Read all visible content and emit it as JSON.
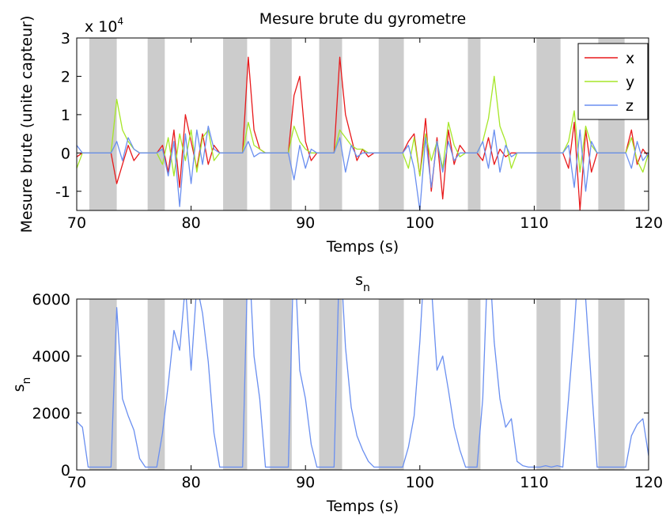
{
  "chart_data": [
    {
      "type": "line",
      "title": "Mesure brute du gyrometre",
      "x_label": "Temps (s)",
      "y_label": "Mesure brute (unite capteur)",
      "y_scale_label": "x 10",
      "y_scale_exponent": "4",
      "xlim": [
        70,
        120
      ],
      "xticks": [
        70,
        80,
        90,
        100,
        110,
        120
      ],
      "ylim": [
        -1.5,
        3
      ],
      "yticks": [
        -1,
        0,
        1,
        2,
        3
      ],
      "legend": "upper right",
      "shade_color": "#cccccc",
      "shaded_regions": [
        [
          71.1,
          73.5
        ],
        [
          76.2,
          77.7
        ],
        [
          82.8,
          84.9
        ],
        [
          86.9,
          88.8
        ],
        [
          91.2,
          93.2
        ],
        [
          96.4,
          98.6
        ],
        [
          104.2,
          105.3
        ],
        [
          110.2,
          112.3
        ],
        [
          115.6,
          117.9
        ]
      ],
      "x": [
        70,
        70.5,
        71,
        71.5,
        72,
        72.5,
        73,
        73.5,
        74,
        74.5,
        75,
        75.5,
        76,
        76.5,
        77,
        77.5,
        78,
        78.5,
        79,
        79.5,
        80,
        80.5,
        81,
        81.5,
        82,
        82.5,
        83,
        83.5,
        84,
        84.5,
        85,
        85.5,
        86,
        86.5,
        87,
        87.5,
        88,
        88.5,
        89,
        89.5,
        90,
        90.5,
        91,
        91.5,
        92,
        92.5,
        93,
        93.5,
        94,
        94.5,
        95,
        95.5,
        96,
        96.5,
        97,
        97.5,
        98,
        98.5,
        99,
        99.5,
        100,
        100.5,
        101,
        101.5,
        102,
        102.5,
        103,
        103.5,
        104,
        104.5,
        105,
        105.5,
        106,
        106.5,
        107,
        107.5,
        108,
        108.5,
        109,
        109.5,
        110,
        110.5,
        111,
        111.5,
        112,
        112.5,
        113,
        113.5,
        114,
        114.5,
        115,
        115.5,
        116,
        116.5,
        117,
        117.5,
        118,
        118.5,
        119,
        119.5,
        120
      ],
      "series": [
        {
          "name": "x",
          "color": "#e8191b",
          "values": [
            -0.1,
            0,
            0,
            0,
            0,
            0,
            0,
            -0.8,
            -0.3,
            0.2,
            -0.2,
            0,
            0,
            0,
            0,
            0.2,
            -0.5,
            0.6,
            -0.9,
            1.0,
            0.3,
            -0.4,
            0.5,
            -0.3,
            0.2,
            0,
            0,
            0,
            0,
            0,
            2.5,
            0.6,
            0.1,
            0,
            0,
            0,
            0,
            0,
            1.5,
            2.0,
            0.3,
            -0.2,
            0,
            0,
            0,
            0,
            2.5,
            1.0,
            0.4,
            -0.2,
            0.1,
            -0.1,
            0,
            0,
            0,
            0,
            0,
            0,
            0.3,
            0.5,
            -0.6,
            0.9,
            -1.0,
            0.4,
            -1.2,
            0.6,
            -0.3,
            0.2,
            0,
            0,
            0,
            -0.2,
            0.4,
            -0.3,
            0.1,
            -0.1,
            0,
            0,
            0,
            0,
            0,
            0,
            0,
            0,
            0,
            0,
            -0.4,
            0.8,
            -1.5,
            0.6,
            -0.5,
            0,
            0,
            0,
            0,
            0,
            0,
            0.6,
            -0.3,
            0.1,
            -0.1
          ]
        },
        {
          "name": "y",
          "color": "#a6e628",
          "values": [
            -0.4,
            0,
            0,
            0,
            0,
            0,
            0,
            1.4,
            0.6,
            0.3,
            0.1,
            0,
            0,
            0,
            0,
            -0.3,
            0.4,
            -0.6,
            0.5,
            -0.2,
            0.6,
            -0.5,
            0.4,
            0.6,
            -0.2,
            0,
            0,
            0,
            0,
            0,
            0.8,
            0.2,
            0.1,
            0,
            0,
            0,
            0,
            0,
            0.7,
            0.3,
            0.1,
            0,
            0,
            0,
            0,
            0,
            0.6,
            0.4,
            0.2,
            0.1,
            0.1,
            0,
            0,
            0,
            0,
            0,
            0,
            0,
            -0.4,
            0.4,
            -0.6,
            0.5,
            -0.2,
            0.3,
            -0.4,
            0.8,
            0.2,
            -0.1,
            0,
            0,
            0,
            0.3,
            0.9,
            2.0,
            0.7,
            0.3,
            -0.4,
            0,
            0,
            0,
            0,
            0,
            0,
            0,
            0,
            0,
            0.3,
            1.1,
            -0.5,
            0.7,
            0.2,
            0,
            0,
            0,
            0,
            0,
            0,
            0.4,
            -0.2,
            -0.5,
            0
          ]
        },
        {
          "name": "z",
          "color": "#6a8ff0",
          "values": [
            0.2,
            0,
            0,
            0,
            0,
            0,
            0,
            0.3,
            -0.2,
            0.4,
            0.1,
            0,
            0,
            0,
            0,
            0.1,
            -0.6,
            0.3,
            -1.4,
            0.5,
            -0.8,
            0.6,
            -0.3,
            0.7,
            0.1,
            0,
            0,
            0,
            0,
            0,
            0.3,
            -0.1,
            0,
            0,
            0,
            0,
            0,
            0,
            -0.7,
            0.2,
            -0.4,
            0.1,
            0,
            0,
            0,
            0,
            0.4,
            -0.5,
            0.2,
            -0.1,
            0,
            0,
            0,
            0,
            0,
            0,
            0,
            0,
            0.2,
            -0.4,
            -1.5,
            0.4,
            -0.9,
            0.3,
            -0.5,
            0.3,
            -0.2,
            0,
            0,
            0,
            0,
            0.3,
            -0.4,
            0.6,
            -0.5,
            0.2,
            -0.1,
            0,
            0,
            0,
            0,
            0,
            0,
            0,
            0,
            0,
            0.2,
            -0.9,
            0.6,
            -1.0,
            0.3,
            0,
            0,
            0,
            0,
            0,
            0,
            -0.4,
            0.3,
            -0.2,
            0
          ]
        }
      ]
    },
    {
      "type": "line",
      "title": "s",
      "title_subscript": "n",
      "x_label": "Temps (s)",
      "y_label": "s",
      "y_label_subscript": "n",
      "xlim": [
        70,
        120
      ],
      "xticks": [
        70,
        80,
        90,
        100,
        110,
        120
      ],
      "ylim": [
        0,
        6000
      ],
      "yticks": [
        0,
        2000,
        4000,
        6000
      ],
      "shade_color": "#cccccc",
      "shaded_regions": [
        [
          71.1,
          73.5
        ],
        [
          76.2,
          77.7
        ],
        [
          82.8,
          84.9
        ],
        [
          86.9,
          88.8
        ],
        [
          91.2,
          93.2
        ],
        [
          96.4,
          98.6
        ],
        [
          104.2,
          105.3
        ],
        [
          110.2,
          112.3
        ],
        [
          115.6,
          117.9
        ]
      ],
      "x": [
        70,
        70.5,
        71,
        71.5,
        72,
        72.5,
        73,
        73.5,
        74,
        74.5,
        75,
        75.5,
        76,
        76.5,
        77,
        77.5,
        78,
        78.5,
        79,
        79.5,
        80,
        80.5,
        81,
        81.5,
        82,
        82.5,
        83,
        83.5,
        84,
        84.5,
        85,
        85.5,
        86,
        86.5,
        87,
        87.5,
        88,
        88.5,
        89,
        89.5,
        90,
        90.5,
        91,
        91.5,
        92,
        92.5,
        93,
        93.5,
        94,
        94.5,
        95,
        95.5,
        96,
        96.5,
        97,
        97.5,
        98,
        98.5,
        99,
        99.5,
        100,
        100.5,
        101,
        101.5,
        102,
        102.5,
        103,
        103.5,
        104,
        104.5,
        105,
        105.5,
        106,
        106.5,
        107,
        107.5,
        108,
        108.5,
        109,
        109.5,
        110,
        110.5,
        111,
        111.5,
        112,
        112.5,
        113,
        113.5,
        114,
        114.5,
        115,
        115.5,
        116,
        116.5,
        117,
        117.5,
        118,
        118.5,
        119,
        119.5,
        120
      ],
      "series": [
        {
          "color": "#6a8ff0",
          "values": [
            1700,
            1500,
            100,
            100,
            100,
            100,
            100,
            5700,
            2500,
            1900,
            1400,
            400,
            100,
            100,
            100,
            1300,
            3000,
            4900,
            4200,
            6500,
            3500,
            6500,
            5500,
            3800,
            1300,
            100,
            100,
            100,
            100,
            100,
            8000,
            4000,
            2500,
            100,
            100,
            100,
            100,
            100,
            8000,
            3500,
            2500,
            900,
            100,
            100,
            100,
            100,
            8000,
            4300,
            2200,
            1200,
            700,
            300,
            100,
            100,
            100,
            100,
            100,
            100,
            800,
            1900,
            4500,
            8000,
            6500,
            3500,
            4000,
            2800,
            1500,
            700,
            100,
            100,
            100,
            2500,
            8000,
            4500,
            2500,
            1500,
            1800,
            300,
            150,
            100,
            100,
            100,
            150,
            100,
            150,
            100,
            2500,
            5000,
            8000,
            6000,
            3000,
            100,
            100,
            100,
            100,
            100,
            100,
            1200,
            1600,
            1800,
            500
          ]
        }
      ]
    }
  ]
}
